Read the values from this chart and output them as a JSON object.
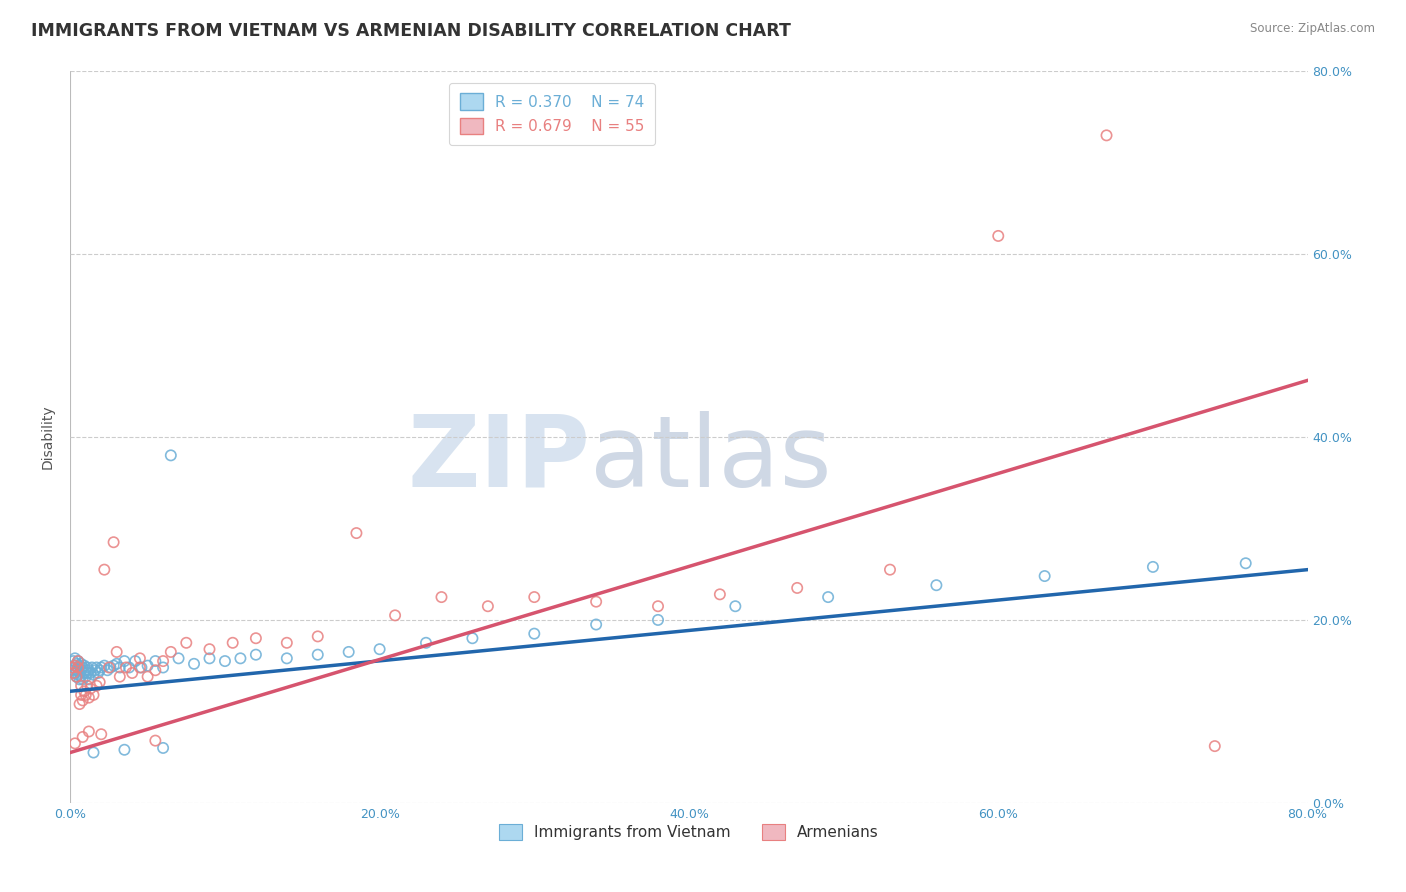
{
  "title": "IMMIGRANTS FROM VIETNAM VS ARMENIAN DISABILITY CORRELATION CHART",
  "source": "Source: ZipAtlas.com",
  "ylabel": "Disability",
  "xlim": [
    0.0,
    0.8
  ],
  "ylim": [
    0.0,
    0.8
  ],
  "xticks": [
    0.0,
    0.2,
    0.4,
    0.6,
    0.8
  ],
  "yticks": [
    0.0,
    0.2,
    0.4,
    0.6,
    0.8
  ],
  "xticklabels": [
    "0.0%",
    "20.0%",
    "40.0%",
    "60.0%",
    "80.0%"
  ],
  "yticklabels": [
    "0.0%",
    "20.0%",
    "40.0%",
    "60.0%",
    "80.0%"
  ],
  "series": [
    {
      "name": "Immigrants from Vietnam",
      "face_color": "none",
      "edge_color": "#6baed6",
      "R": 0.37,
      "N": 74,
      "x": [
        0.001,
        0.002,
        0.002,
        0.003,
        0.003,
        0.003,
        0.004,
        0.004,
        0.004,
        0.005,
        0.005,
        0.005,
        0.006,
        0.006,
        0.006,
        0.007,
        0.007,
        0.007,
        0.008,
        0.008,
        0.009,
        0.009,
        0.01,
        0.01,
        0.011,
        0.011,
        0.012,
        0.012,
        0.013,
        0.014,
        0.015,
        0.016,
        0.017,
        0.018,
        0.019,
        0.02,
        0.022,
        0.024,
        0.026,
        0.028,
        0.03,
        0.032,
        0.035,
        0.038,
        0.042,
        0.046,
        0.05,
        0.055,
        0.06,
        0.065,
        0.07,
        0.08,
        0.09,
        0.1,
        0.11,
        0.12,
        0.14,
        0.16,
        0.18,
        0.2,
        0.23,
        0.26,
        0.3,
        0.34,
        0.38,
        0.43,
        0.49,
        0.56,
        0.63,
        0.7,
        0.76,
        0.06,
        0.035,
        0.015
      ],
      "y": [
        0.145,
        0.148,
        0.155,
        0.142,
        0.15,
        0.158,
        0.138,
        0.145,
        0.152,
        0.14,
        0.148,
        0.155,
        0.135,
        0.142,
        0.15,
        0.138,
        0.145,
        0.152,
        0.135,
        0.148,
        0.142,
        0.15,
        0.138,
        0.145,
        0.142,
        0.148,
        0.135,
        0.145,
        0.142,
        0.148,
        0.14,
        0.145,
        0.148,
        0.142,
        0.145,
        0.148,
        0.15,
        0.145,
        0.148,
        0.15,
        0.152,
        0.148,
        0.155,
        0.148,
        0.155,
        0.148,
        0.15,
        0.155,
        0.148,
        0.38,
        0.158,
        0.152,
        0.158,
        0.155,
        0.158,
        0.162,
        0.158,
        0.162,
        0.165,
        0.168,
        0.175,
        0.18,
        0.185,
        0.195,
        0.2,
        0.215,
        0.225,
        0.238,
        0.248,
        0.258,
        0.262,
        0.06,
        0.058,
        0.055
      ]
    },
    {
      "name": "Armenians",
      "face_color": "none",
      "edge_color": "#e88080",
      "R": 0.679,
      "N": 55,
      "x": [
        0.001,
        0.002,
        0.003,
        0.004,
        0.005,
        0.005,
        0.006,
        0.007,
        0.007,
        0.008,
        0.009,
        0.01,
        0.011,
        0.012,
        0.013,
        0.015,
        0.017,
        0.019,
        0.022,
        0.025,
        0.028,
        0.032,
        0.036,
        0.04,
        0.045,
        0.05,
        0.055,
        0.065,
        0.075,
        0.09,
        0.105,
        0.12,
        0.14,
        0.16,
        0.185,
        0.21,
        0.24,
        0.27,
        0.3,
        0.34,
        0.38,
        0.42,
        0.47,
        0.53,
        0.6,
        0.67,
        0.74,
        0.055,
        0.008,
        0.003,
        0.012,
        0.02,
        0.03,
        0.045,
        0.06
      ],
      "y": [
        0.148,
        0.142,
        0.15,
        0.138,
        0.148,
        0.155,
        0.108,
        0.118,
        0.128,
        0.112,
        0.122,
        0.118,
        0.128,
        0.115,
        0.125,
        0.118,
        0.128,
        0.132,
        0.255,
        0.148,
        0.285,
        0.138,
        0.148,
        0.142,
        0.148,
        0.138,
        0.145,
        0.165,
        0.175,
        0.168,
        0.175,
        0.18,
        0.175,
        0.182,
        0.295,
        0.205,
        0.225,
        0.215,
        0.225,
        0.22,
        0.215,
        0.228,
        0.235,
        0.255,
        0.62,
        0.73,
        0.062,
        0.068,
        0.072,
        0.065,
        0.078,
        0.075,
        0.165,
        0.158,
        0.155
      ]
    }
  ],
  "trend_lines": [
    {
      "color": "#2166ac",
      "x_start": 0.0,
      "x_end": 0.8,
      "y_start": 0.122,
      "y_end": 0.255
    },
    {
      "color": "#d6546e",
      "x_start": 0.0,
      "x_end": 0.8,
      "y_start": 0.055,
      "y_end": 0.462
    }
  ],
  "watermark_zip": "ZIP",
  "watermark_atlas": "atlas",
  "background_color": "#ffffff",
  "grid_color": "#cccccc",
  "title_color": "#333333",
  "axis_label_color": "#555555",
  "tick_color": "#4393c3",
  "legend_border_color": "#cccccc",
  "title_fontsize": 12.5,
  "axis_label_fontsize": 10,
  "tick_fontsize": 9,
  "legend_fontsize": 11,
  "marker_size": 55,
  "marker_lw": 1.2
}
